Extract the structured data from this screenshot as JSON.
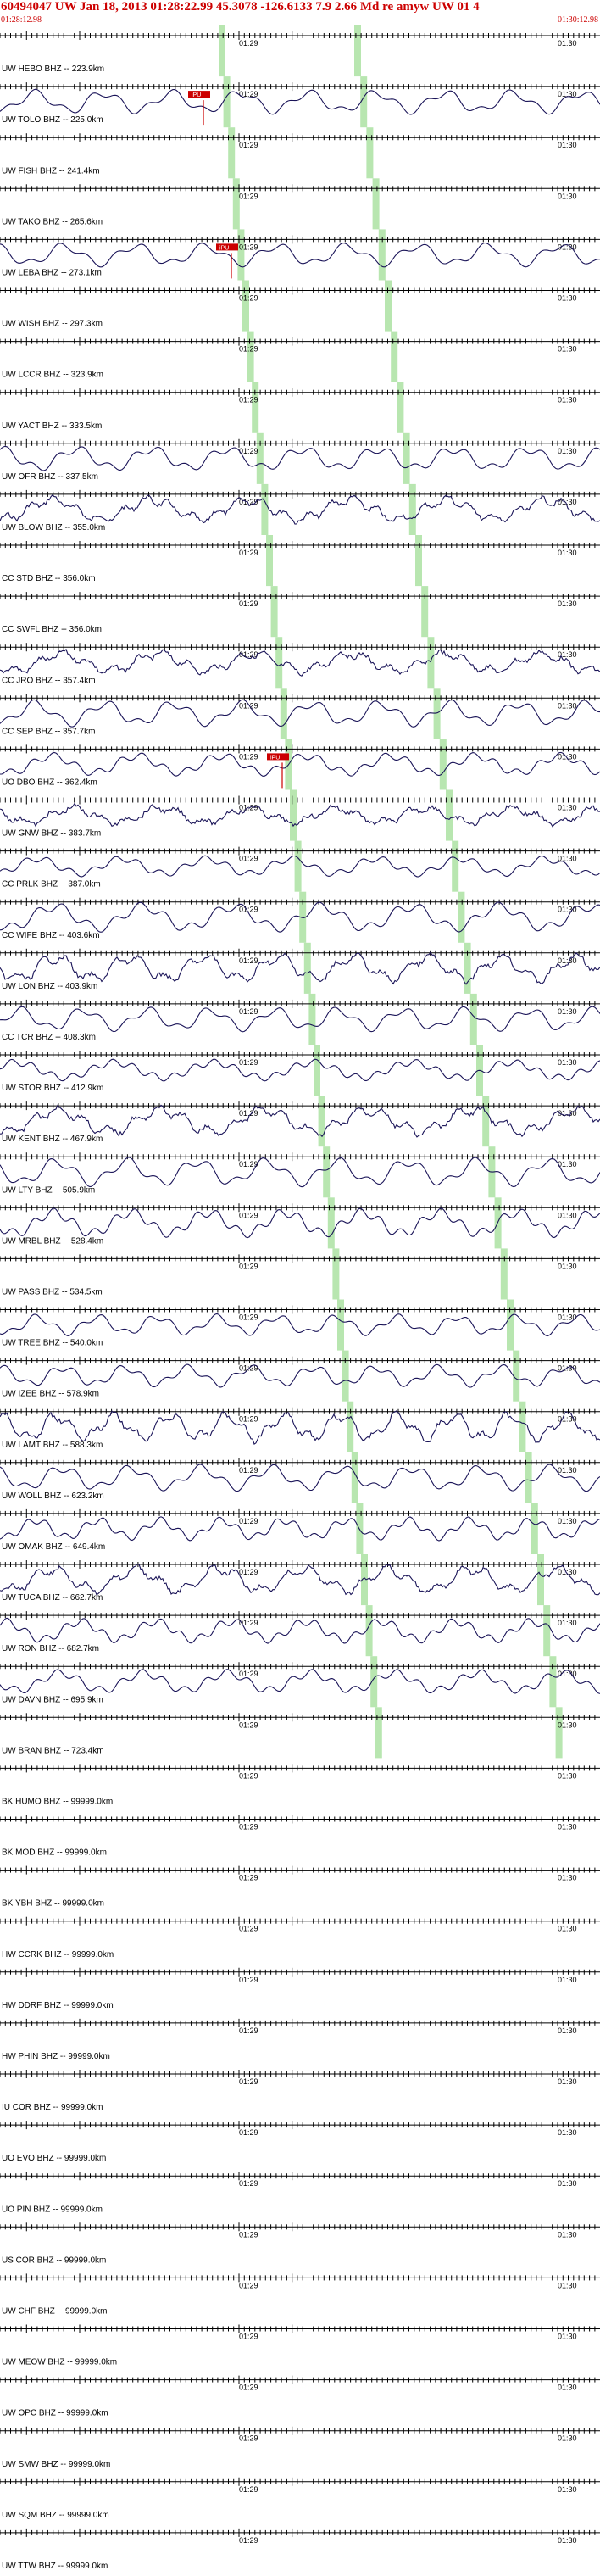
{
  "header": {
    "title": "60494047 UW Jan 18, 2013 01:28:22.99   45.3078 -126.6133  7.9 2.66 Md re amyw UW 01   4",
    "start_time": "01:28:12.98",
    "end_time": "01:30:12.98"
  },
  "colors": {
    "header_text": "#cc0000",
    "trace": "#1a1458",
    "phase_band": "#b8e6b0",
    "pick_marker": "#cc0000"
  },
  "time_labels": [
    "01:29",
    "01:30"
  ],
  "traces": [
    {
      "label": "UW HEBO BHZ -- 223.9km",
      "has_signal": false
    },
    {
      "label": "UW TOLO BHZ -- 225.0km",
      "has_signal": true,
      "pick": "iPU"
    },
    {
      "label": "UW FISH BHZ -- 241.4km",
      "has_signal": false
    },
    {
      "label": "UW TAKO BHZ -- 265.6km",
      "has_signal": false
    },
    {
      "label": "UW LEBA BHZ -- 273.1km",
      "has_signal": true,
      "pick": "iPU"
    },
    {
      "label": "UW WISH BHZ -- 297.3km",
      "has_signal": false
    },
    {
      "label": "UW LCCR BHZ -- 323.9km",
      "has_signal": false
    },
    {
      "label": "UW YACT BHZ -- 333.5km",
      "has_signal": false
    },
    {
      "label": "UW OFR BHZ -- 337.5km",
      "has_signal": true
    },
    {
      "label": "UW BLOW BHZ -- 355.0km",
      "has_signal": true
    },
    {
      "label": "CC STD BHZ -- 356.0km",
      "has_signal": false
    },
    {
      "label": "CC SWFL BHZ -- 356.0km",
      "has_signal": false
    },
    {
      "label": "CC JRO BHZ -- 357.4km",
      "has_signal": true
    },
    {
      "label": "CC SEP BHZ -- 357.7km",
      "has_signal": true
    },
    {
      "label": "UO DBO BHZ -- 362.4km",
      "has_signal": true,
      "pick": "iPU"
    },
    {
      "label": "UW GNW BHZ -- 383.7km",
      "has_signal": true
    },
    {
      "label": "CC PRLK BHZ -- 387.0km",
      "has_signal": true
    },
    {
      "label": "CC WIFE BHZ -- 403.6km",
      "has_signal": true
    },
    {
      "label": "UW LON BHZ -- 403.9km",
      "has_signal": true
    },
    {
      "label": "CC TCR BHZ -- 408.3km",
      "has_signal": true
    },
    {
      "label": "UW STOR BHZ -- 412.9km",
      "has_signal": true
    },
    {
      "label": "UW KENT BHZ -- 467.9km",
      "has_signal": true
    },
    {
      "label": "UW LTY BHZ -- 505.9km",
      "has_signal": true
    },
    {
      "label": "UW MRBL BHZ -- 528.4km",
      "has_signal": true
    },
    {
      "label": "UW PASS BHZ -- 534.5km",
      "has_signal": false
    },
    {
      "label": "UW TREE BHZ -- 540.0km",
      "has_signal": true
    },
    {
      "label": "UW IZEE BHZ -- 578.9km",
      "has_signal": true
    },
    {
      "label": "UW LAMT BHZ -- 588.3km",
      "has_signal": true
    },
    {
      "label": "UW WOLL BHZ -- 623.2km",
      "has_signal": true
    },
    {
      "label": "UW OMAK BHZ -- 649.4km",
      "has_signal": true
    },
    {
      "label": "UW TUCA BHZ -- 662.7km",
      "has_signal": true
    },
    {
      "label": "UW RON BHZ -- 682.7km",
      "has_signal": true
    },
    {
      "label": "UW DAVN BHZ -- 695.9km",
      "has_signal": true
    },
    {
      "label": "UW BRAN BHZ -- 723.4km",
      "has_signal": false
    },
    {
      "label": "BK HUMO BHZ -- 99999.0km",
      "has_signal": false
    },
    {
      "label": "BK MOD BHZ -- 99999.0km",
      "has_signal": false
    },
    {
      "label": "BK YBH BHZ -- 99999.0km",
      "has_signal": false
    },
    {
      "label": "HW CCRK BHZ -- 99999.0km",
      "has_signal": false
    },
    {
      "label": "HW DDRF BHZ -- 99999.0km",
      "has_signal": false
    },
    {
      "label": "HW PHIN BHZ -- 99999.0km",
      "has_signal": false
    },
    {
      "label": "IU COR BHZ -- 99999.0km",
      "has_signal": false
    },
    {
      "label": "UO EVO BHZ -- 99999.0km",
      "has_signal": false
    },
    {
      "label": "UO PIN BHZ -- 99999.0km",
      "has_signal": false
    },
    {
      "label": "US COR BHZ -- 99999.0km",
      "has_signal": false
    },
    {
      "label": "UW CHF BHZ -- 99999.0km",
      "has_signal": false
    },
    {
      "label": "UW MEOW BHZ -- 99999.0km",
      "has_signal": false
    },
    {
      "label": "UW OPC BHZ -- 99999.0km",
      "has_signal": false
    },
    {
      "label": "UW SMW BHZ -- 99999.0km",
      "has_signal": false
    },
    {
      "label": "UW SQM BHZ -- 99999.0km",
      "has_signal": false
    },
    {
      "label": "UW TTW BHZ -- 99999.0km",
      "has_signal": false
    }
  ]
}
